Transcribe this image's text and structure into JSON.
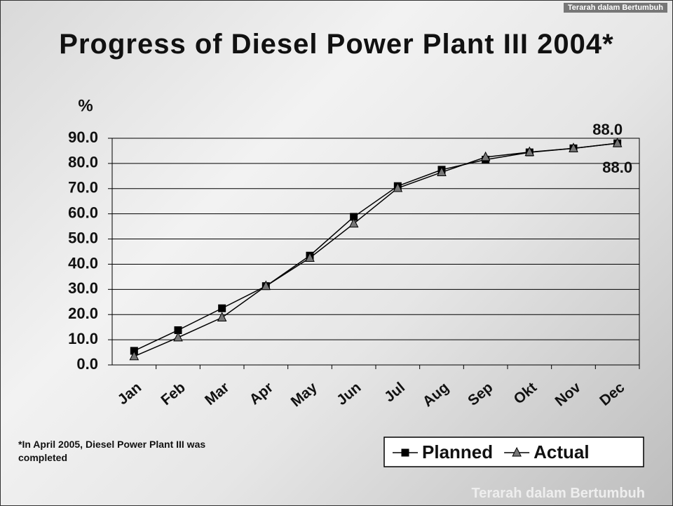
{
  "slide": {
    "header": "Terarah dalam Bertumbuh",
    "footer": "Terarah dalam Bertumbuh"
  },
  "chart_data": {
    "type": "line",
    "title": "Progress of Diesel Power Plant III 2004*",
    "y_label": "%",
    "note": "*In April 2005, Diesel Power Plant III was completed",
    "categories": [
      "Jan",
      "Feb",
      "Mar",
      "Apr",
      "May",
      "Jun",
      "Jul",
      "Aug",
      "Sep",
      "Okt",
      "Nov",
      "Dec"
    ],
    "series": [
      {
        "name": "Planned",
        "color": "#000000",
        "marker": "square",
        "values": [
          5.6,
          13.8,
          22.5,
          31.3,
          43.4,
          58.8,
          71.0,
          77.5,
          81.5,
          84.4,
          86.0,
          88.0
        ],
        "value_labels": [
          null,
          null,
          null,
          null,
          null,
          null,
          null,
          null,
          null,
          null,
          null,
          "88.0"
        ]
      },
      {
        "name": "Actual",
        "color": "#777777",
        "marker": "triangle",
        "values": [
          3.4,
          10.9,
          18.8,
          31.3,
          42.5,
          56.1,
          70.2,
          76.5,
          82.5,
          84.5,
          86.0,
          88.0
        ],
        "value_labels": [
          null,
          null,
          null,
          null,
          null,
          null,
          null,
          null,
          null,
          null,
          null,
          "88.0"
        ]
      }
    ],
    "ylim": [
      0,
      90
    ],
    "yticks": [
      {
        "value": 0,
        "label": "0.0"
      },
      {
        "value": 10,
        "label": "10.0"
      },
      {
        "value": 20,
        "label": "20.0"
      },
      {
        "value": 30,
        "label": "30.0"
      },
      {
        "value": 40,
        "label": "40.0"
      },
      {
        "value": 50,
        "label": "50.0"
      },
      {
        "value": 60,
        "label": "60.0"
      },
      {
        "value": 70,
        "label": "70.0"
      },
      {
        "value": 80,
        "label": "80.0"
      },
      {
        "value": 90,
        "label": "90.0"
      }
    ],
    "grid": true,
    "legend": "lower right"
  }
}
